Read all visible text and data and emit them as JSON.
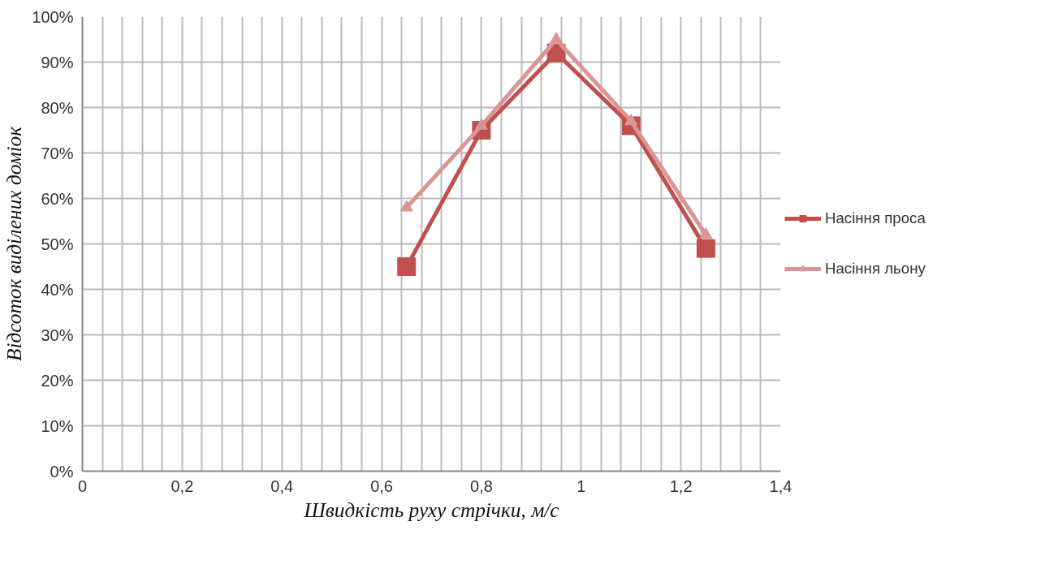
{
  "chart_data": {
    "type": "line",
    "xlabel": "Швидкість руху стрічки, м/с",
    "ylabel": "Відсоток виділених домiок",
    "xlim": [
      0,
      1.4
    ],
    "xticks": [
      0,
      {
        "value": 0.2,
        "label": "0,2"
      },
      {
        "value": 0.4,
        "label": "0,4"
      },
      {
        "value": 0.6,
        "label": "0,6"
      },
      {
        "value": 0.8,
        "label": "0,8"
      },
      1,
      {
        "value": 1.2,
        "label": "1,2"
      },
      {
        "value": 1.4,
        "label": "1,4"
      }
    ],
    "ylim": [
      0,
      1
    ],
    "yticks": [
      {
        "value": 0,
        "label": "0%"
      },
      {
        "value": 0.1,
        "label": "10%"
      },
      {
        "value": 0.2,
        "label": "20%"
      },
      {
        "value": 0.3,
        "label": "30%"
      },
      {
        "value": 0.4,
        "label": "40%"
      },
      {
        "value": 0.5,
        "label": "50%"
      },
      {
        "value": 0.6,
        "label": "60%"
      },
      {
        "value": 0.7,
        "label": "70%"
      },
      {
        "value": 0.8,
        "label": "80%"
      },
      {
        "value": 0.9,
        "label": "90%"
      },
      {
        "value": 1,
        "label": "100%"
      }
    ],
    "x": [
      0.65,
      0.8,
      0.95,
      1.1,
      1.25
    ],
    "grid": true,
    "legend": "right",
    "series": [
      {
        "name": "Насіння проса",
        "color": "#c0504d",
        "marker": "square",
        "values": [
          0.45,
          0.75,
          0.92,
          0.76,
          0.49
        ]
      },
      {
        "name": "Насіння льону",
        "color": "#d99694",
        "marker": "triangle",
        "values": [
          0.58,
          0.76,
          0.95,
          0.77,
          0.52
        ]
      }
    ]
  }
}
